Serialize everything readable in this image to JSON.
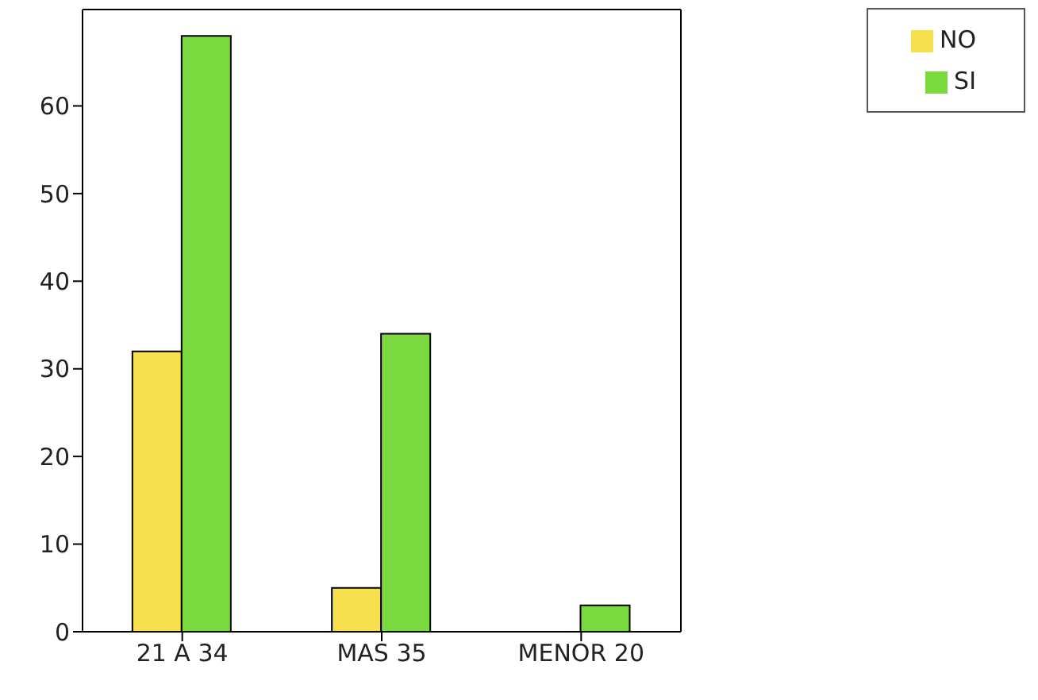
{
  "chart_data": {
    "type": "bar",
    "categories": [
      "21 A 34",
      "MAS 35",
      "MENOR 20"
    ],
    "series": [
      {
        "name": "NO",
        "color": "#f7e04e",
        "values": [
          32,
          5,
          0
        ]
      },
      {
        "name": "SI",
        "color": "#7ad93e",
        "values": [
          68,
          34,
          3
        ]
      }
    ],
    "ylim": [
      0,
      71
    ],
    "yticks": [
      0,
      10,
      20,
      30,
      40,
      50,
      60
    ],
    "legend": "top right"
  }
}
